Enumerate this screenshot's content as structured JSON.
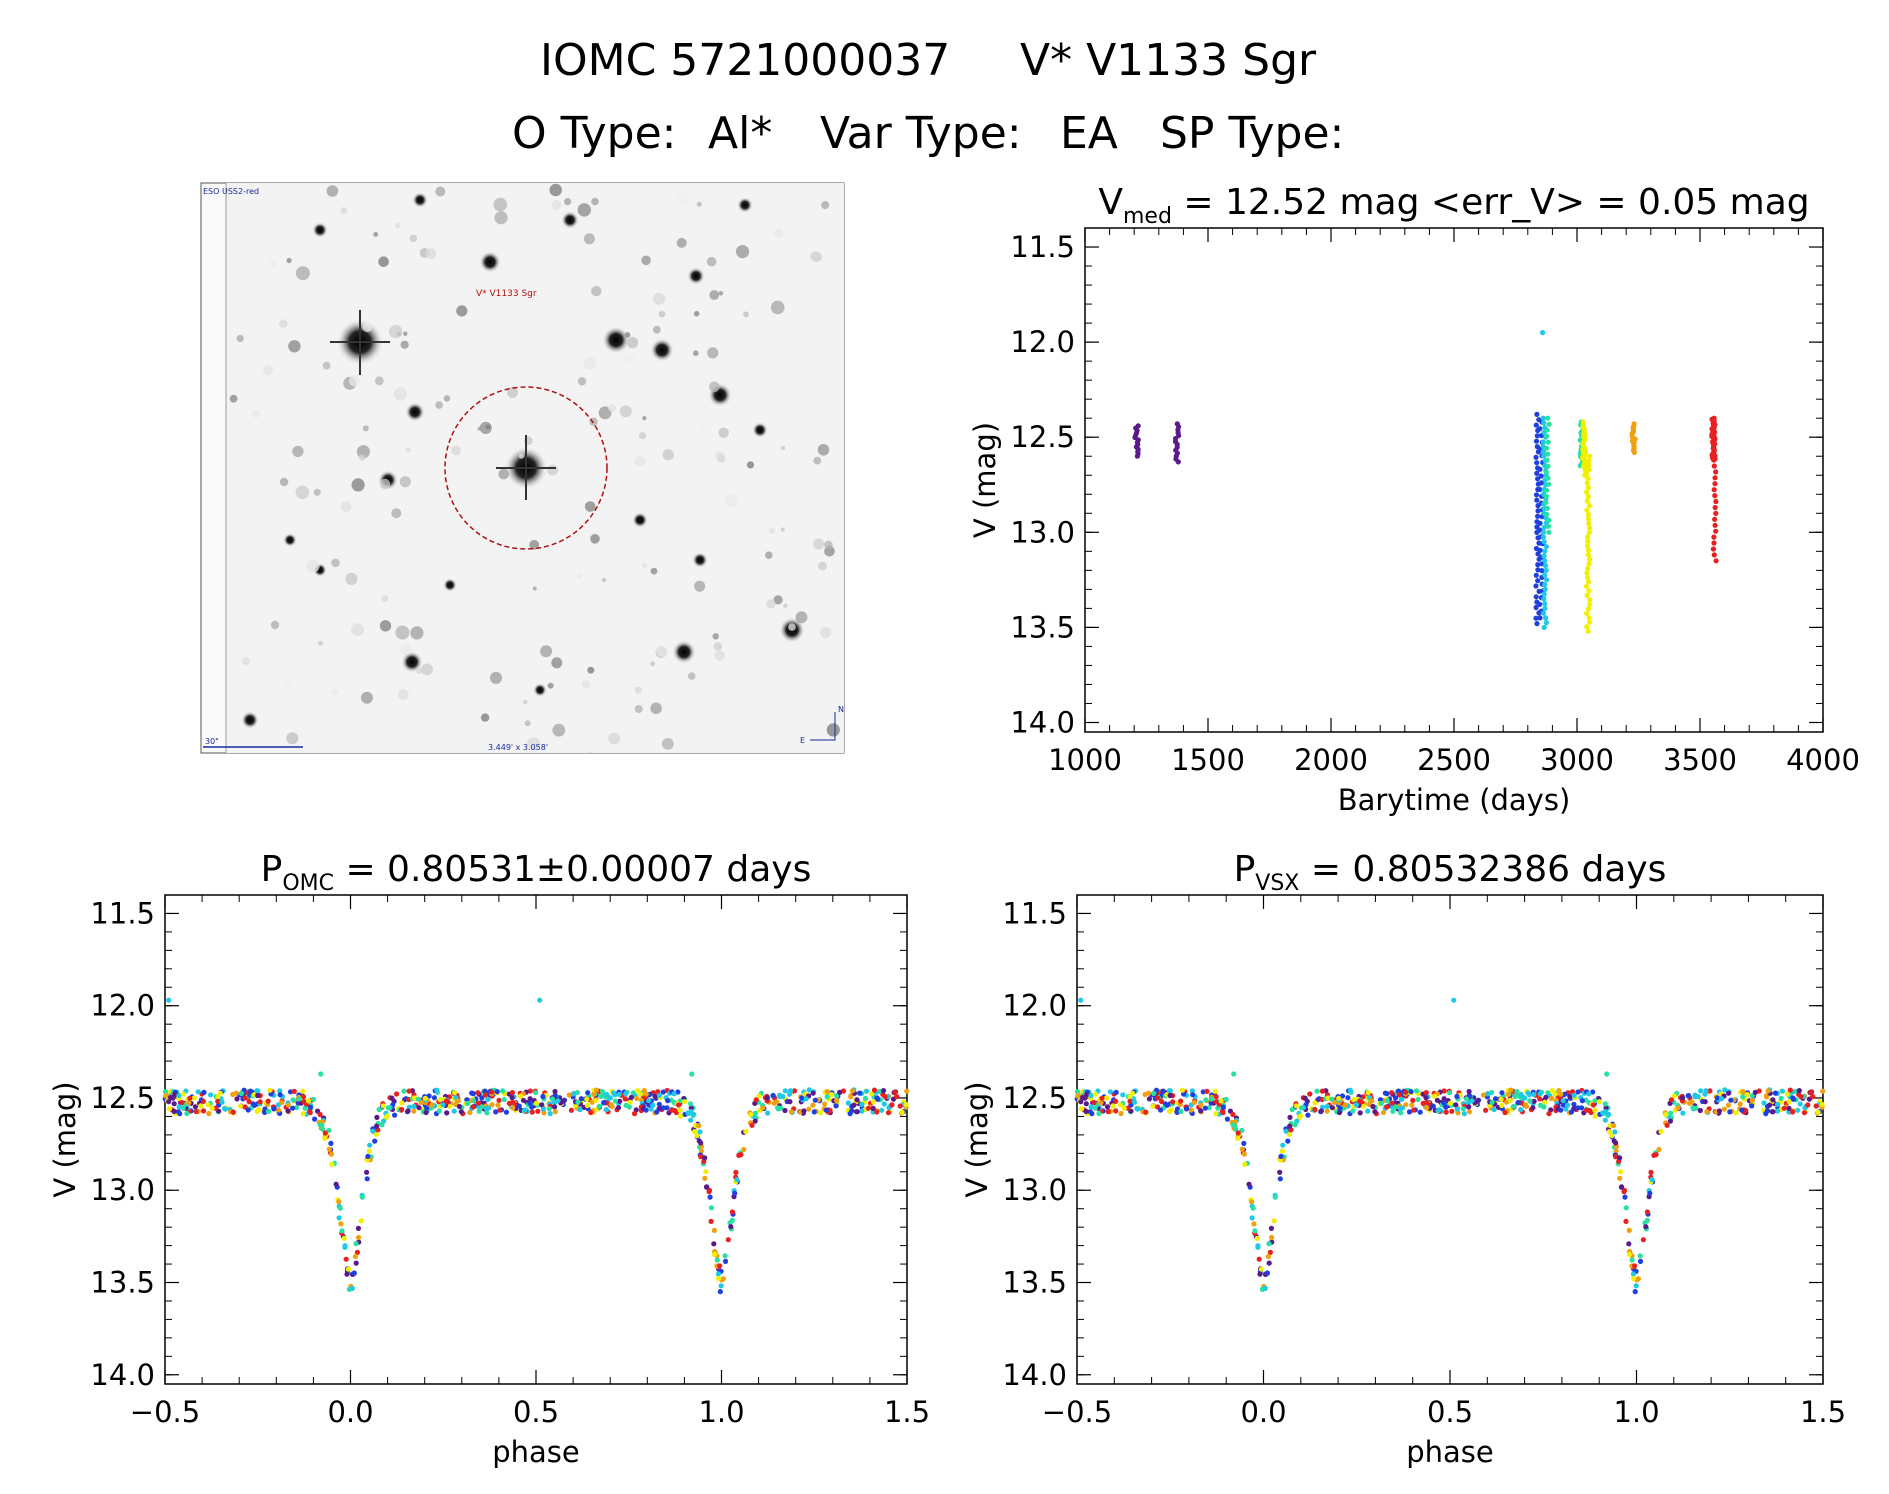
{
  "header": {
    "title_id": "IOMC 5721000037",
    "title_name": "V* V1133 Sgr",
    "otype_label": "O Type:",
    "otype_value": "Al*",
    "vartype_label": "Var Type:",
    "vartype_value": "EA",
    "sptype_label": "SP Type:",
    "sptype_value": ""
  },
  "finder": {
    "survey": "ESO USS2-red",
    "target_label": "V* V1133 Sgr",
    "scale_label": "30\"",
    "fov_label": "3.449' x 3.058'",
    "compass_n": "N",
    "compass_e": "E"
  },
  "colors": {
    "purple": "#5a1a8c",
    "blue": "#1f3fe0",
    "cyan": "#20c8e8",
    "green": "#28e0a0",
    "yellow": "#f0f000",
    "orange": "#f0a010",
    "red": "#e82020"
  },
  "chart_data": [
    {
      "id": "lightcurve",
      "type": "scatter",
      "title_prefix": "V",
      "title_sub": "med",
      "title_rest": " = 12.52 mag <err_V> = 0.05 mag",
      "xlabel": "Barytime (days)",
      "ylabel": "V (mag)",
      "xlim": [
        1000,
        4000
      ],
      "ylim": [
        11.4,
        14.05
      ],
      "y_inverted": true,
      "xticks": [
        1000,
        1500,
        2000,
        2500,
        3000,
        3500,
        4000
      ],
      "yticks": [
        11.5,
        12.0,
        12.5,
        13.0,
        13.5,
        14.0
      ],
      "groups": [
        {
          "x": 1210,
          "color": "purple",
          "ymin": 12.44,
          "ymax": 12.6,
          "n": 14
        },
        {
          "x": 1375,
          "color": "purple",
          "ymin": 12.43,
          "ymax": 12.63,
          "n": 14
        },
        {
          "x": 2840,
          "color": "blue",
          "ymin": 12.38,
          "ymax": 13.48,
          "n": 40
        },
        {
          "x": 2855,
          "color": "blue",
          "ymin": 12.42,
          "ymax": 13.45,
          "n": 30
        },
        {
          "x": 2870,
          "color": "cyan",
          "ymin": 12.4,
          "ymax": 13.5,
          "n": 45
        },
        {
          "x": 2880,
          "color": "green",
          "ymin": 12.4,
          "ymax": 13.0,
          "n": 20
        },
        {
          "x": 3020,
          "color": "green",
          "ymin": 12.42,
          "ymax": 12.65,
          "n": 30
        },
        {
          "x": 3030,
          "color": "yellow",
          "ymin": 12.42,
          "ymax": 12.7,
          "n": 30
        },
        {
          "x": 3045,
          "color": "yellow",
          "ymin": 12.6,
          "ymax": 13.52,
          "n": 40
        },
        {
          "x": 3230,
          "color": "orange",
          "ymin": 12.43,
          "ymax": 12.58,
          "n": 16
        },
        {
          "x": 3555,
          "color": "red",
          "ymin": 12.4,
          "ymax": 12.62,
          "n": 40
        },
        {
          "x": 3560,
          "color": "red",
          "ymin": 12.62,
          "ymax": 13.15,
          "n": 18
        }
      ],
      "outliers": [
        {
          "x": 2860,
          "y": 11.95,
          "color": "cyan"
        }
      ]
    },
    {
      "id": "phase_omc",
      "type": "scatter",
      "title_prefix": "P",
      "title_sub": "OMC",
      "title_rest": " = 0.80531±0.00007 days",
      "period_days": 0.80531,
      "xlabel": "phase",
      "ylabel": "V (mag)",
      "xlim": [
        -0.5,
        1.5
      ],
      "ylim": [
        11.4,
        14.05
      ],
      "y_inverted": true,
      "xticks": [
        "−0.5",
        "0.0",
        "0.5",
        "1.0",
        "1.5"
      ],
      "xtick_values": [
        -0.5,
        0.0,
        0.5,
        1.0,
        1.5
      ],
      "yticks": [
        11.5,
        12.0,
        12.5,
        13.0,
        13.5,
        14.0
      ],
      "baseline_mag": 12.52,
      "eclipse_depth_mag": 13.5,
      "eclipse_phases": [
        0.0,
        1.0
      ],
      "outliers": [
        {
          "x": -0.49,
          "y": 11.97,
          "color": "cyan"
        },
        {
          "x": 0.51,
          "y": 11.97,
          "color": "cyan"
        },
        {
          "x": -0.08,
          "y": 12.37,
          "color": "green"
        },
        {
          "x": 0.92,
          "y": 12.37,
          "color": "green"
        }
      ]
    },
    {
      "id": "phase_vsx",
      "type": "scatter",
      "title_prefix": "P",
      "title_sub": "VSX",
      "title_rest": " = 0.80532386 days",
      "period_days": 0.80532386,
      "xlabel": "phase",
      "ylabel": "V (mag)",
      "xlim": [
        -0.5,
        1.5
      ],
      "ylim": [
        11.4,
        14.05
      ],
      "y_inverted": true,
      "xticks": [
        "−0.5",
        "0.0",
        "0.5",
        "1.0",
        "1.5"
      ],
      "xtick_values": [
        -0.5,
        0.0,
        0.5,
        1.0,
        1.5
      ],
      "yticks": [
        11.5,
        12.0,
        12.5,
        13.0,
        13.5,
        14.0
      ],
      "baseline_mag": 12.52,
      "eclipse_depth_mag": 13.5,
      "eclipse_phases": [
        0.0,
        1.0
      ],
      "outliers": [
        {
          "x": -0.49,
          "y": 11.97,
          "color": "cyan"
        },
        {
          "x": 0.51,
          "y": 11.97,
          "color": "cyan"
        },
        {
          "x": -0.08,
          "y": 12.37,
          "color": "green"
        },
        {
          "x": 0.92,
          "y": 12.37,
          "color": "green"
        }
      ]
    }
  ]
}
